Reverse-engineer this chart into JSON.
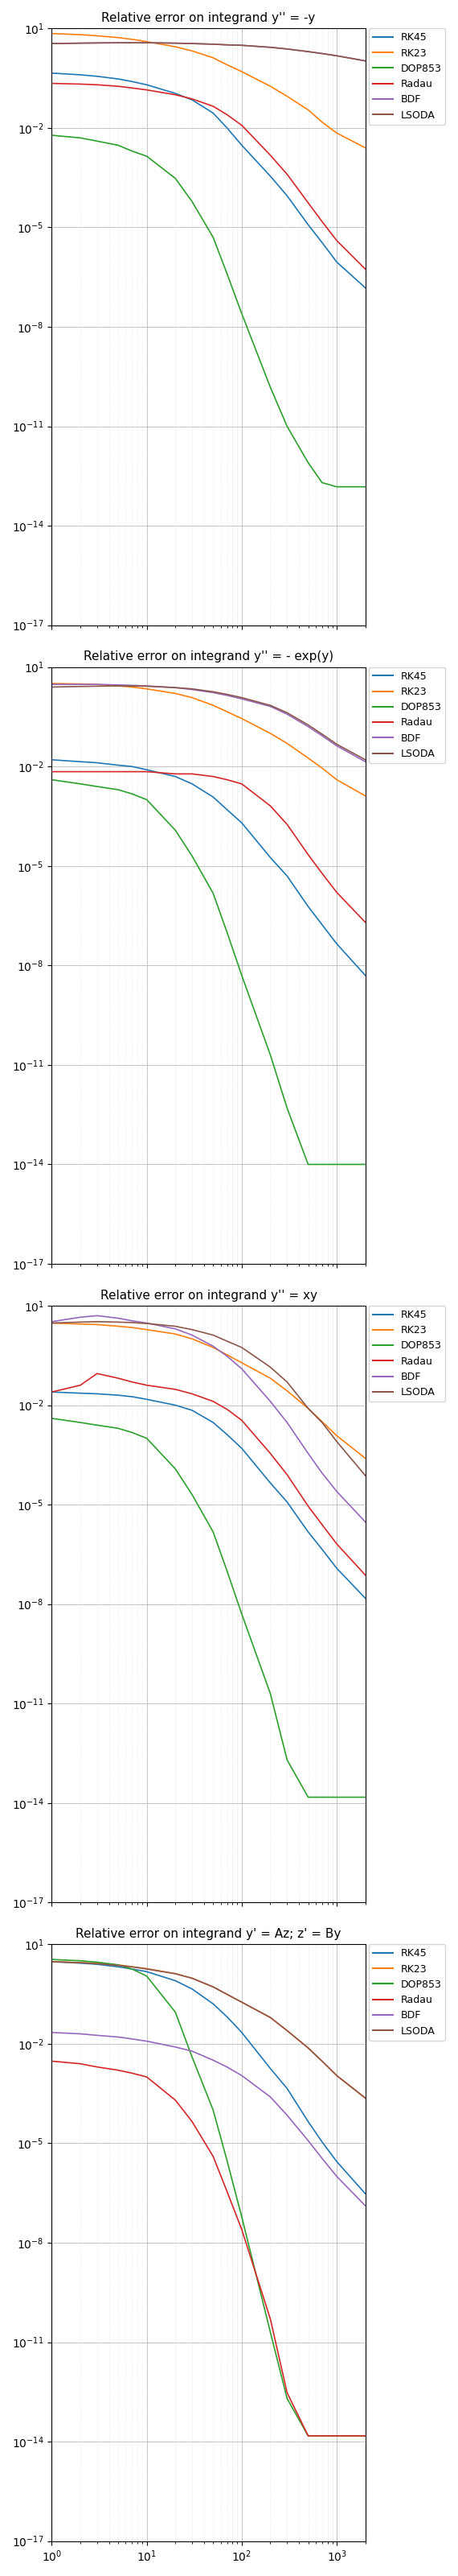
{
  "titles": [
    "Relative error on integrand y'' = -y",
    "Relative error on integrand y'' = - exp(y)",
    "Relative error on integrand y'' = xy",
    "Relative error on integrand y' = Az; z' = By"
  ],
  "legend_labels": [
    "RK45",
    "RK23",
    "DOP853",
    "Radau",
    "BDF",
    "LSODA"
  ],
  "colors": {
    "RK45": "#1f77b4",
    "RK23": "#ff7f0e",
    "DOP853": "#2ca02c",
    "Radau": "#d62728",
    "BDF": "#9467bd",
    "LSODA": "#8c564b"
  },
  "x_points": [
    1,
    2,
    3,
    5,
    7,
    10,
    20,
    30,
    50,
    70,
    100,
    200,
    300,
    500,
    700,
    1000,
    2000
  ],
  "plot0": {
    "RK45": [
      0.45,
      0.4,
      0.36,
      0.3,
      0.25,
      0.2,
      0.11,
      0.07,
      0.028,
      0.01,
      0.003,
      0.00035,
      9e-05,
      1.2e-05,
      3.5e-06,
      9e-07,
      1.5e-07
    ],
    "RK23": [
      7.0,
      6.5,
      6.0,
      5.3,
      4.7,
      4.0,
      2.8,
      2.1,
      1.3,
      0.8,
      0.5,
      0.18,
      0.09,
      0.035,
      0.015,
      0.007,
      0.0025
    ],
    "DOP853": [
      0.006,
      0.005,
      0.004,
      0.003,
      0.002,
      0.0014,
      0.0003,
      6e-05,
      5e-06,
      4e-07,
      2.5e-08,
      1.5e-10,
      1e-11,
      8e-13,
      2e-13,
      1.5e-13,
      1.5e-13
    ],
    "Radau": [
      0.22,
      0.21,
      0.2,
      0.18,
      0.16,
      0.14,
      0.1,
      0.075,
      0.045,
      0.025,
      0.012,
      0.0015,
      0.0004,
      5.5e-05,
      1.5e-05,
      4e-06,
      5.5e-07
    ],
    "BDF": [
      3.5,
      3.6,
      3.65,
      3.7,
      3.7,
      3.7,
      3.6,
      3.5,
      3.35,
      3.2,
      3.1,
      2.7,
      2.4,
      2.0,
      1.75,
      1.5,
      1.05
    ],
    "LSODA": [
      3.5,
      3.6,
      3.65,
      3.7,
      3.7,
      3.7,
      3.6,
      3.5,
      3.35,
      3.2,
      3.1,
      2.7,
      2.4,
      2.0,
      1.75,
      1.5,
      1.05
    ]
  },
  "plot1": {
    "RK45": [
      0.016,
      0.014,
      0.013,
      0.011,
      0.01,
      0.008,
      0.005,
      0.003,
      0.0012,
      0.0005,
      0.0002,
      1.8e-05,
      5e-06,
      6e-07,
      1.7e-07,
      4.5e-08,
      5e-09
    ],
    "RK23": [
      3.2,
      3.1,
      3.0,
      2.7,
      2.5,
      2.2,
      1.6,
      1.2,
      0.7,
      0.45,
      0.28,
      0.1,
      0.05,
      0.018,
      0.009,
      0.004,
      0.0013
    ],
    "DOP853": [
      0.004,
      0.003,
      0.0025,
      0.002,
      0.0015,
      0.001,
      0.00012,
      2e-05,
      1.5e-06,
      1e-07,
      5e-09,
      2e-11,
      5e-13,
      1e-14,
      1e-14,
      1e-14,
      1e-14
    ],
    "Radau": [
      0.007,
      0.007,
      0.007,
      0.007,
      0.007,
      0.007,
      0.006,
      0.006,
      0.005,
      0.004,
      0.003,
      0.00065,
      0.00018,
      2.2e-05,
      6e-06,
      1.6e-06,
      2e-07
    ],
    "BDF": [
      3.0,
      3.0,
      3.0,
      2.9,
      2.8,
      2.7,
      2.4,
      2.1,
      1.7,
      1.4,
      1.1,
      0.65,
      0.38,
      0.16,
      0.085,
      0.042,
      0.014
    ],
    "LSODA": [
      2.5,
      2.6,
      2.65,
      2.7,
      2.7,
      2.65,
      2.4,
      2.2,
      1.8,
      1.5,
      1.2,
      0.7,
      0.42,
      0.18,
      0.095,
      0.047,
      0.016
    ]
  },
  "plot2": {
    "RK45": [
      0.025,
      0.023,
      0.022,
      0.02,
      0.018,
      0.015,
      0.01,
      0.007,
      0.003,
      0.0013,
      0.0005,
      4.5e-05,
      1.2e-05,
      1.5e-06,
      4.5e-07,
      1.2e-07,
      1.5e-08
    ],
    "RK23": [
      3.0,
      2.8,
      2.7,
      2.4,
      2.2,
      1.9,
      1.4,
      1.0,
      0.55,
      0.33,
      0.19,
      0.065,
      0.027,
      0.008,
      0.0032,
      0.0012,
      0.00025
    ],
    "DOP853": [
      0.004,
      0.003,
      0.0025,
      0.002,
      0.0015,
      0.001,
      0.00012,
      2e-05,
      1.5e-06,
      1e-07,
      5e-09,
      2e-11,
      2e-13,
      1.5e-14,
      1.5e-14,
      1.5e-14,
      1.5e-14
    ],
    "Radau": [
      0.025,
      0.04,
      0.09,
      0.065,
      0.05,
      0.04,
      0.03,
      0.022,
      0.013,
      0.0075,
      0.0035,
      0.00035,
      8e-05,
      9e-06,
      2.5e-06,
      6.5e-07,
      7.5e-08
    ],
    "BDF": [
      3.3,
      4.5,
      5.0,
      4.2,
      3.5,
      3.0,
      2.0,
      1.3,
      0.6,
      0.3,
      0.125,
      0.013,
      0.003,
      0.00035,
      9e-05,
      2.5e-05,
      3e-06
    ],
    "LSODA": [
      3.0,
      3.2,
      3.3,
      3.2,
      3.1,
      2.9,
      2.4,
      1.9,
      1.3,
      0.85,
      0.55,
      0.14,
      0.05,
      0.008,
      0.003,
      0.0008,
      7.5e-05
    ]
  },
  "plot3": {
    "RK45": [
      3.0,
      2.7,
      2.5,
      2.1,
      1.8,
      1.5,
      0.8,
      0.45,
      0.16,
      0.065,
      0.022,
      0.0018,
      0.00045,
      4.5e-05,
      1.1e-05,
      2.8e-06,
      3e-07
    ],
    "RK23": [
      3.0,
      2.8,
      2.7,
      2.4,
      2.1,
      1.85,
      1.3,
      0.95,
      0.52,
      0.31,
      0.18,
      0.062,
      0.025,
      0.0075,
      0.003,
      0.0011,
      0.00023
    ],
    "DOP853": [
      3.5,
      3.2,
      2.9,
      2.4,
      1.8,
      1.1,
      0.09,
      0.004,
      0.0001,
      3e-06,
      6e-08,
      2e-11,
      2e-13,
      1.5e-14,
      1.5e-14,
      1.5e-14,
      1.5e-14
    ],
    "Radau": [
      0.003,
      0.0025,
      0.002,
      0.0016,
      0.0013,
      0.001,
      0.0002,
      4.5e-05,
      4e-06,
      3.5e-07,
      2.5e-08,
      5e-11,
      3e-13,
      1.5e-14,
      1.5e-14,
      1.5e-14,
      1.5e-14
    ],
    "BDF": [
      0.022,
      0.02,
      0.018,
      0.016,
      0.014,
      0.012,
      0.008,
      0.006,
      0.0032,
      0.002,
      0.0011,
      0.00025,
      7e-05,
      1.2e-05,
      3.5e-06,
      1e-06,
      1.3e-07
    ],
    "LSODA": [
      3.0,
      2.8,
      2.6,
      2.3,
      2.1,
      1.8,
      1.3,
      0.95,
      0.52,
      0.31,
      0.18,
      0.062,
      0.025,
      0.0075,
      0.003,
      0.0011,
      0.00023
    ]
  }
}
